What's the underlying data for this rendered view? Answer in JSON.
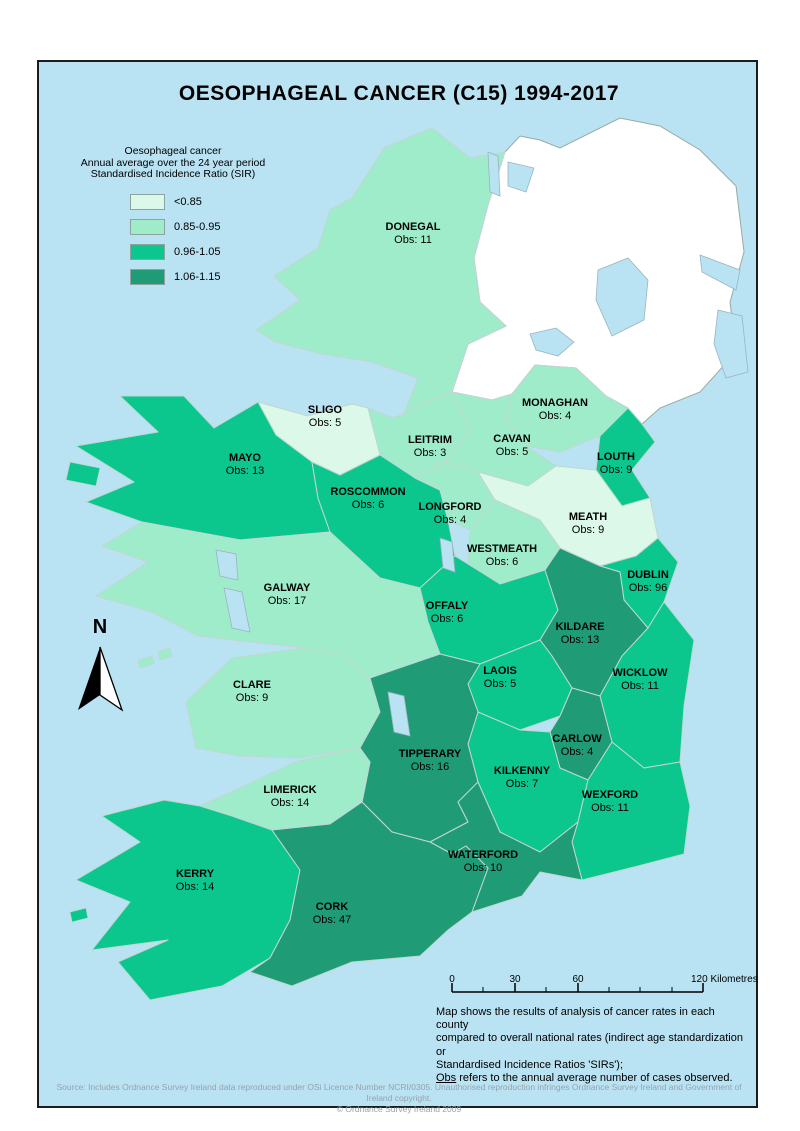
{
  "title": "OESOPHAGEAL CANCER (C15) 1994-2017",
  "legend": {
    "heading_lines": [
      "Oesophageal cancer",
      "Annual average over the 24 year period",
      "Standardised Incidence Ratio (SIR)"
    ],
    "classes": [
      {
        "label": "<0.85",
        "color": "#dcf8e9"
      },
      {
        "label": "0.85-0.95",
        "color": "#9feccb"
      },
      {
        "label": "0.96-1.05",
        "color": "#0bc78d"
      },
      {
        "label": "1.06-1.15",
        "color": "#1f9c75"
      }
    ]
  },
  "map": {
    "obs_prefix": "Obs:",
    "north_label": "N",
    "sea_color": "#b9e2f2",
    "counties": [
      {
        "name": "DONEGAL",
        "obs": 11,
        "sir_class": 1
      },
      {
        "name": "SLIGO",
        "obs": 5,
        "sir_class": 0
      },
      {
        "name": "MAYO",
        "obs": 13,
        "sir_class": 2
      },
      {
        "name": "LEITRIM",
        "obs": 3,
        "sir_class": 1
      },
      {
        "name": "ROSCOMMON",
        "obs": 6,
        "sir_class": 2
      },
      {
        "name": "LONGFORD",
        "obs": 4,
        "sir_class": 1
      },
      {
        "name": "CAVAN",
        "obs": 5,
        "sir_class": 1
      },
      {
        "name": "MONAGHAN",
        "obs": 4,
        "sir_class": 1
      },
      {
        "name": "LOUTH",
        "obs": 9,
        "sir_class": 2
      },
      {
        "name": "MEATH",
        "obs": 9,
        "sir_class": 0
      },
      {
        "name": "WESTMEATH",
        "obs": 6,
        "sir_class": 1
      },
      {
        "name": "DUBLIN",
        "obs": 96,
        "sir_class": 2
      },
      {
        "name": "GALWAY",
        "obs": 17,
        "sir_class": 1
      },
      {
        "name": "OFFALY",
        "obs": 6,
        "sir_class": 2
      },
      {
        "name": "KILDARE",
        "obs": 13,
        "sir_class": 3
      },
      {
        "name": "WICKLOW",
        "obs": 11,
        "sir_class": 2
      },
      {
        "name": "CLARE",
        "obs": 9,
        "sir_class": 1
      },
      {
        "name": "LAOIS",
        "obs": 5,
        "sir_class": 2
      },
      {
        "name": "CARLOW",
        "obs": 4,
        "sir_class": 3
      },
      {
        "name": "KILKENNY",
        "obs": 7,
        "sir_class": 2
      },
      {
        "name": "WEXFORD",
        "obs": 11,
        "sir_class": 2
      },
      {
        "name": "TIPPERARY",
        "obs": 16,
        "sir_class": 3
      },
      {
        "name": "LIMERICK",
        "obs": 14,
        "sir_class": 1
      },
      {
        "name": "WATERFORD",
        "obs": 10,
        "sir_class": 3
      },
      {
        "name": "KERRY",
        "obs": 14,
        "sir_class": 2
      },
      {
        "name": "CORK",
        "obs": 47,
        "sir_class": 3
      }
    ]
  },
  "scale_bar": {
    "tick_labels": [
      "0",
      "30",
      "60"
    ],
    "end_label": "120 Kilometres"
  },
  "notes": {
    "lines": [
      "Map shows the results of analysis of cancer rates in each county",
      "compared to overall national rates (indirect age standardization or",
      "Standardised Incidence Ratios 'SIRs');"
    ],
    "obs_word": "Obs",
    "obs_rest": " refers to the annual average number of cases observed."
  },
  "source_lines": [
    "Source: Includes Ordnance Survey Ireland data reproduced under OSi Licence Number NCRI/0305. Unauthorised reproduction infringes Ordnance Survey Ireland and Government of Ireland copyright.",
    "© Ordnance Survey Ireland 2009"
  ]
}
